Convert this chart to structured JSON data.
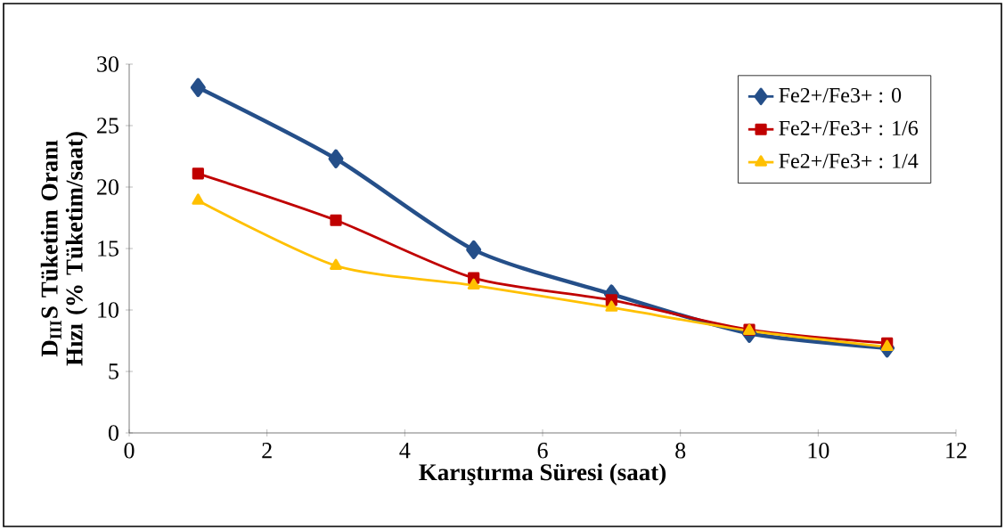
{
  "chart_data": {
    "type": "line",
    "xlabel": "Karıştırma Süresi (saat)",
    "ylabel": "D$_{III}$S Tüketim Oranı Hızı (% Tüketim/saat)",
    "x": [
      1,
      3,
      5,
      7,
      9,
      11
    ],
    "xlim": [
      0,
      12
    ],
    "xticks": [
      0,
      2,
      4,
      6,
      8,
      10,
      12
    ],
    "ylim": [
      0,
      30
    ],
    "yticks": [
      0,
      5,
      10,
      15,
      20,
      25,
      30
    ],
    "grid": false,
    "legend": "top right",
    "series": [
      {
        "name": "Fe2+/Fe3+ : 0",
        "color": "#254f89",
        "marker": "diamond",
        "values": [
          28.1,
          22.3,
          14.9,
          11.3,
          8.1,
          6.9
        ]
      },
      {
        "name": "Fe2+/Fe3+ : 1/6",
        "color": "#c00000",
        "marker": "square",
        "values": [
          21.1,
          17.3,
          12.6,
          10.8,
          8.4,
          7.3
        ]
      },
      {
        "name": "Fe2+/Fe3+ : 1/4",
        "color": "#ffc000",
        "marker": "triangle",
        "values": [
          18.9,
          13.6,
          12.0,
          10.2,
          8.3,
          7.0
        ]
      }
    ]
  }
}
